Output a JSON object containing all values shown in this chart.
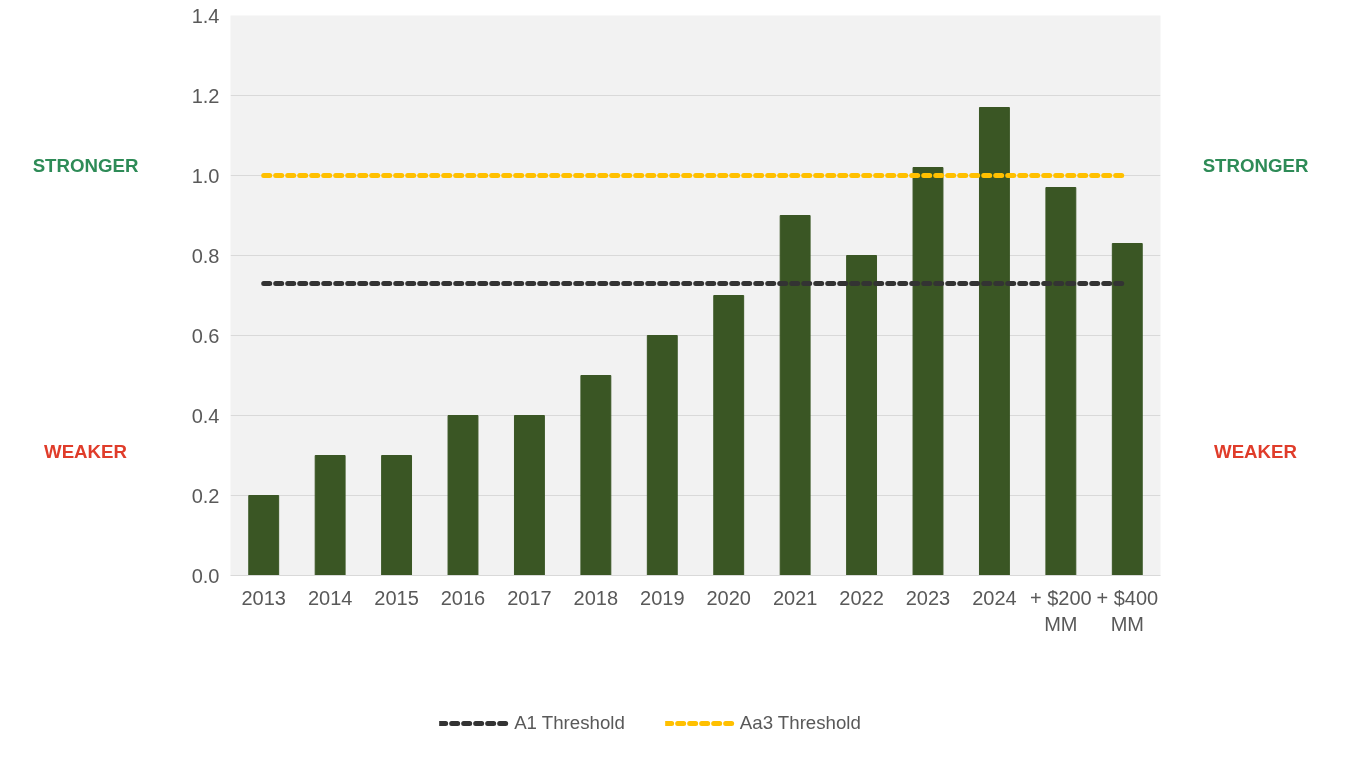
{
  "chart_data": {
    "type": "bar",
    "categories": [
      "2013",
      "2014",
      "2015",
      "2016",
      "2017",
      "2018",
      "2019",
      "2020",
      "2021",
      "2022",
      "2023",
      "2024",
      "+ $200 MM",
      "+ $400 MM"
    ],
    "series": [
      {
        "name": null,
        "color": "#3a5624",
        "values": [
          0.2,
          0.3,
          0.3,
          0.4,
          0.4,
          0.5,
          0.6,
          0.7,
          0.9,
          0.8,
          1.02,
          1.17,
          0.97,
          0.83
        ]
      },
      {
        "name": "A1 Threshold",
        "type": "line",
        "color": "#333333",
        "line_style": "dashed",
        "values": [
          0.73,
          0.73,
          0.73,
          0.73,
          0.73,
          0.73,
          0.73,
          0.73,
          0.73,
          0.73,
          0.73,
          0.73,
          0.73,
          0.73
        ]
      },
      {
        "name": "Aa3 Threshold",
        "type": "line",
        "color": "#ffc000",
        "line_style": "dashed",
        "values": [
          1.0,
          1.0,
          1.0,
          1.0,
          1.0,
          1.0,
          1.0,
          1.0,
          1.0,
          1.0,
          1.0,
          1.0,
          1.0,
          1.0
        ]
      }
    ],
    "ylim": [
      0,
      1.4
    ],
    "yticks": [
      {
        "value": 0,
        "label": "0.0"
      },
      {
        "value": 0.2,
        "label": "0.2"
      },
      {
        "value": 0.4,
        "label": "0.4"
      },
      {
        "value": 0.6,
        "label": "0.6"
      },
      {
        "value": 0.8,
        "label": "0.8"
      },
      {
        "value": 1.0,
        "label": "1.0"
      },
      {
        "value": 1.2,
        "label": "1.2"
      },
      {
        "value": 1.4,
        "label": "1.4"
      }
    ],
    "grid": "y",
    "legend": "bottom",
    "annotations": [
      "STRONGER",
      "WEAKER",
      "STRONGER",
      "WEAKER"
    ]
  }
}
